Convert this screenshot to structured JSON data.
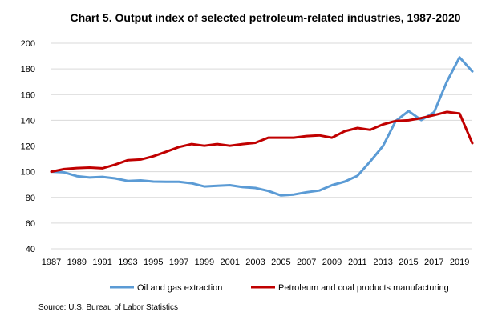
{
  "chart_data": {
    "type": "line",
    "title": "Chart 5. Output index of selected petroleum-related industries, 1987-2020",
    "xlabel": "",
    "ylabel": "",
    "x": [
      1987,
      1988,
      1989,
      1990,
      1991,
      1992,
      1993,
      1994,
      1995,
      1996,
      1997,
      1998,
      1999,
      2000,
      2001,
      2002,
      2003,
      2004,
      2005,
      2006,
      2007,
      2008,
      2009,
      2010,
      2011,
      2012,
      2013,
      2014,
      2015,
      2016,
      2017,
      2018,
      2019,
      2020
    ],
    "x_tick_labels": [
      "1987",
      "1989",
      "1991",
      "1993",
      "1995",
      "1997",
      "1999",
      "2001",
      "2003",
      "2005",
      "2007",
      "2009",
      "2011",
      "2013",
      "2015",
      "2017",
      "2019"
    ],
    "ylim": [
      40,
      200
    ],
    "y_ticks": [
      40,
      60,
      80,
      100,
      120,
      140,
      160,
      180,
      200
    ],
    "grid": "horizontal",
    "legend_position": "bottom",
    "series": [
      {
        "name": "Oil and gas extraction",
        "color": "#5b9bd5",
        "values": [
          100,
          99.5,
          96.5,
          95.5,
          96,
          94.8,
          92.8,
          93.2,
          92.3,
          92.2,
          92.2,
          91,
          88.5,
          89,
          89.5,
          88,
          87.3,
          85,
          81.5,
          82.2,
          84,
          85.3,
          89.5,
          92.3,
          96.8,
          108,
          120,
          139.5,
          147.2,
          140.2,
          146.3,
          170,
          189,
          178
        ]
      },
      {
        "name": "Petroleum and coal products manufacturing",
        "color": "#c00000",
        "values": [
          100,
          102,
          102.8,
          103.2,
          102.6,
          105.5,
          109,
          109.5,
          112,
          115.5,
          119.2,
          121.5,
          120.2,
          121.5,
          120.2,
          121.5,
          122.5,
          126.5,
          126.5,
          126.5,
          127.7,
          128.3,
          126.5,
          131.5,
          134,
          132.6,
          136.8,
          139.5,
          140,
          141.7,
          144,
          146.5,
          145.3,
          122.2
        ]
      }
    ],
    "source": "Source: U.S. Bureau of Labor Statistics"
  }
}
